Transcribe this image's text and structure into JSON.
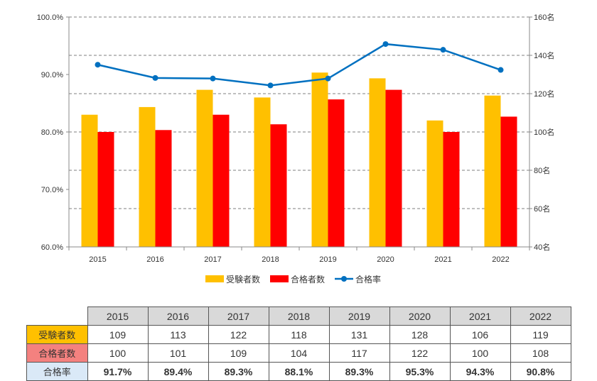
{
  "chart_data": {
    "type": "bar",
    "categories": [
      "2015",
      "2016",
      "2017",
      "2018",
      "2019",
      "2020",
      "2021",
      "2022"
    ],
    "series": [
      {
        "name": "受験者数",
        "type": "bar",
        "axis": "right",
        "color": "#ffc000",
        "values": [
          109,
          113,
          122,
          118,
          131,
          128,
          106,
          119
        ]
      },
      {
        "name": "合格者数",
        "type": "bar",
        "axis": "right",
        "color": "#ff0000",
        "values": [
          100,
          101,
          109,
          104,
          117,
          122,
          100,
          108
        ]
      },
      {
        "name": "合格率",
        "type": "line",
        "axis": "left",
        "color": "#0070c0",
        "values": [
          91.7,
          89.4,
          89.3,
          88.1,
          89.3,
          95.3,
          94.3,
          90.8
        ]
      }
    ],
    "left_axis": {
      "min": 60,
      "max": 100,
      "ticks": [
        "60.0%",
        "70.0%",
        "80.0%",
        "90.0%",
        "100.0%"
      ]
    },
    "right_axis": {
      "min": 40,
      "max": 160,
      "ticks": [
        "40名",
        "60名",
        "80名",
        "100名",
        "120名",
        "140名",
        "160名"
      ]
    },
    "grid": true,
    "legend_position": "bottom"
  },
  "table": {
    "columns": [
      "2015",
      "2016",
      "2017",
      "2018",
      "2019",
      "2020",
      "2021",
      "2022"
    ],
    "rows": [
      {
        "label": "受験者数",
        "values": [
          "109",
          "113",
          "122",
          "118",
          "131",
          "128",
          "106",
          "119"
        ]
      },
      {
        "label": "合格者数",
        "values": [
          "100",
          "101",
          "109",
          "104",
          "117",
          "122",
          "100",
          "108"
        ]
      },
      {
        "label": "合格率",
        "values": [
          "91.7%",
          "89.4%",
          "89.3%",
          "88.1%",
          "89.3%",
          "95.3%",
          "94.3%",
          "90.8%"
        ]
      }
    ]
  }
}
